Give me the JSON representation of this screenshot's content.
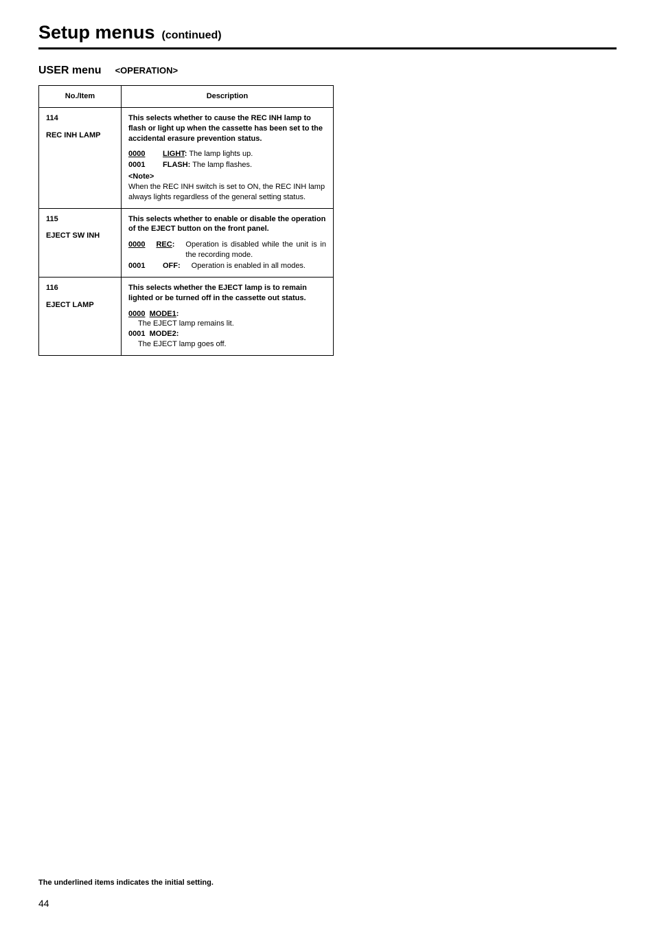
{
  "title": {
    "main": "Setup menus",
    "sub": "(continued)"
  },
  "menu": {
    "name": "USER menu",
    "section": "<OPERATION>"
  },
  "table": {
    "headers": {
      "no": "No./Item",
      "desc": "Description"
    },
    "rows": [
      {
        "no": "114",
        "item": "REC INH LAMP",
        "lead": "This selects whether to cause the REC INH lamp to flash or light up when the cassette has been set to the accidental erasure prevention status.",
        "options": [
          {
            "code": "0000",
            "code_underlined": true,
            "label": "LIGHT",
            "label_underlined": true,
            "sep": ":",
            "desc": "The lamp lights up."
          },
          {
            "code": "0001",
            "code_underlined": false,
            "label": "FLASH",
            "label_underlined": false,
            "sep": ":",
            "desc": "The lamp flashes."
          }
        ],
        "note_label": "<Note>",
        "note": "When the REC INH switch is set to ON, the REC INH lamp always lights regardless of the general setting status."
      },
      {
        "no": "115",
        "item": "EJECT SW INH",
        "lead": "This selects whether to enable or disable the operation of the EJECT button on the front panel.",
        "options": [
          {
            "code": "0000",
            "code_underlined": true,
            "label": "REC",
            "label_underlined": true,
            "sep": ":",
            "desc": "Operation is disabled while the unit is in the recording mode."
          },
          {
            "code": "0001",
            "code_underlined": false,
            "label": "OFF",
            "label_underlined": false,
            "sep": ":",
            "desc": "Operation is enabled in all modes."
          }
        ]
      },
      {
        "no": "116",
        "item": "EJECT LAMP",
        "lead": "This selects whether the EJECT lamp is to remain lighted or be turned off in the cassette out status.",
        "mode_options": [
          {
            "code": "0000",
            "code_underlined": true,
            "label": "MODE1",
            "label_underlined": true,
            "sep": ":",
            "desc": "The EJECT lamp remains lit."
          },
          {
            "code": "0001",
            "code_underlined": false,
            "label": "MODE2",
            "label_underlined": false,
            "sep": ":",
            "desc": "The EJECT lamp goes off."
          }
        ]
      }
    ]
  },
  "footer_note": "The underlined items indicates the initial setting.",
  "page_number": "44"
}
